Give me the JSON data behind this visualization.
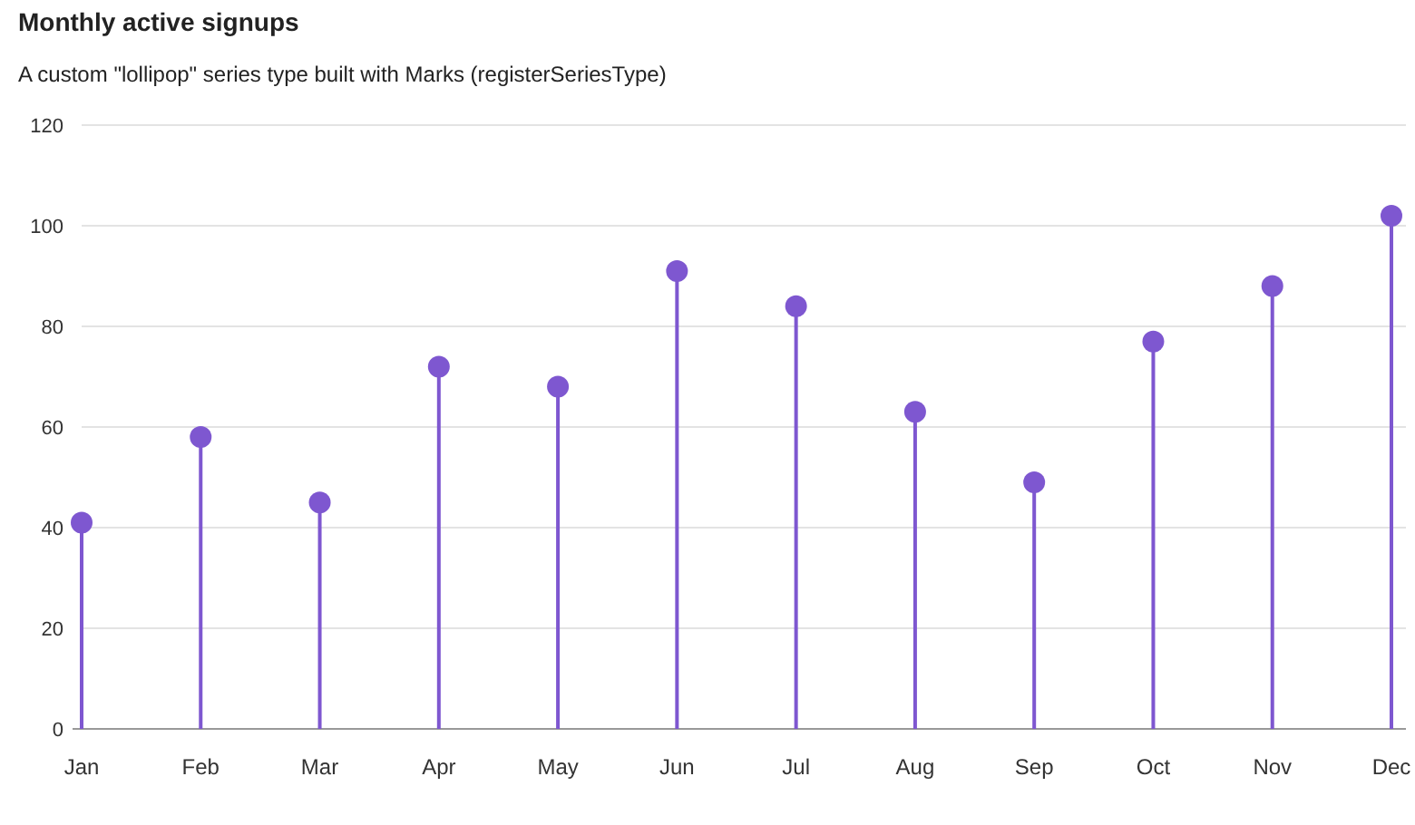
{
  "chart_data": {
    "type": "lollipop",
    "title": "Monthly active signups",
    "subtitle": "A custom \"lollipop\" series type built with Marks (registerSeriesType)",
    "categories": [
      "Jan",
      "Feb",
      "Mar",
      "Apr",
      "May",
      "Jun",
      "Jul",
      "Aug",
      "Sep",
      "Oct",
      "Nov",
      "Dec"
    ],
    "values": [
      41,
      58,
      45,
      72,
      68,
      91,
      84,
      63,
      49,
      77,
      88,
      102
    ],
    "color": "#7e57d0",
    "ylim": [
      0,
      120
    ],
    "yticks": [
      0,
      20,
      40,
      60,
      80,
      100,
      120
    ],
    "grid": "y",
    "marker": "circle"
  }
}
